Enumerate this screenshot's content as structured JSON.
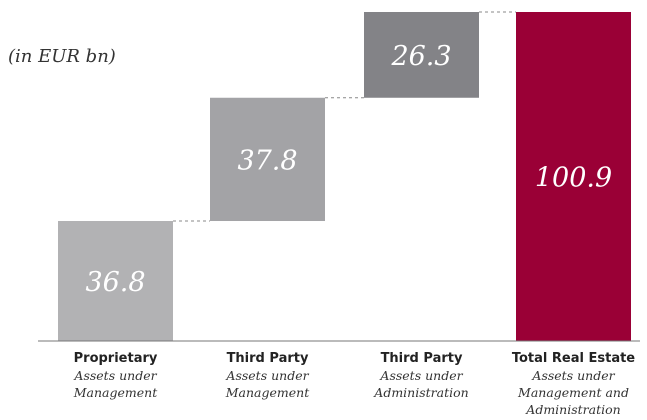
{
  "chart_data": {
    "type": "bar",
    "subtype": "waterfall",
    "unit_label": "(in EUR bn)",
    "categories": [
      {
        "title": "Proprietary",
        "subtitle": [
          "Assets under",
          "Management"
        ]
      },
      {
        "title": "Third Party",
        "subtitle": [
          "Assets under",
          "Management"
        ]
      },
      {
        "title": "Third Party",
        "subtitle": [
          "Assets under",
          "Administration"
        ]
      },
      {
        "title": "Total Real Estate",
        "subtitle": [
          "Assets under",
          "Management and",
          "Administration"
        ]
      }
    ],
    "values": [
      36.8,
      37.8,
      26.3,
      100.9
    ],
    "value_labels": [
      "36.8",
      "37.8",
      "26.3",
      "100.9"
    ],
    "bar_kinds": [
      "increment",
      "increment",
      "increment",
      "total"
    ],
    "colors": [
      "#b2b2b4",
      "#a3a3a6",
      "#838387",
      "#9a0036"
    ],
    "connector_color": "#888888",
    "axis_color": "#777777",
    "grid": false,
    "legend": "none",
    "ylim": [
      0,
      100.9
    ]
  }
}
